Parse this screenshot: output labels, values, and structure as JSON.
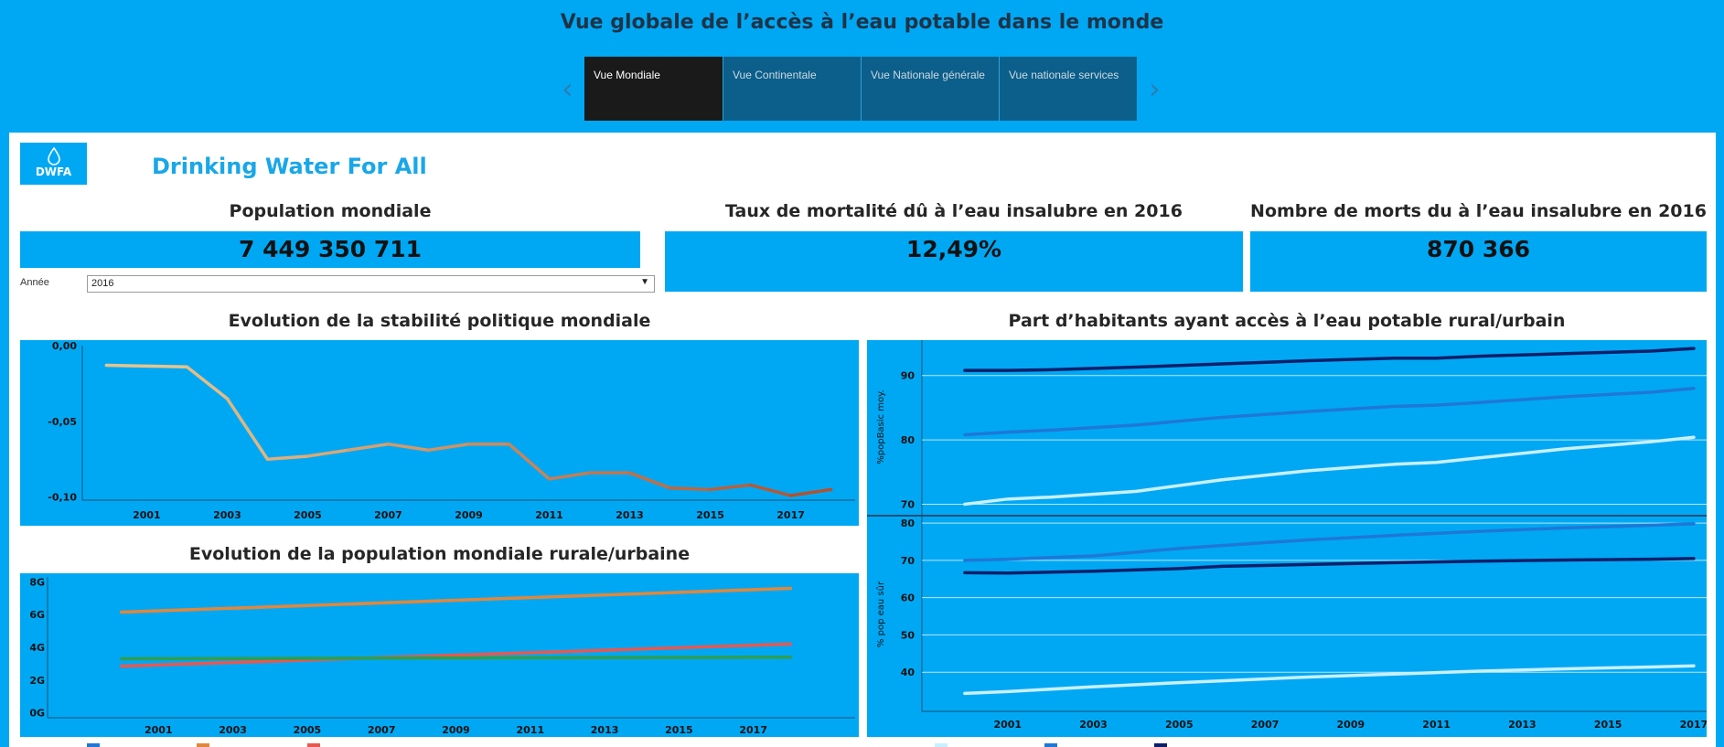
{
  "header": {
    "title": "Vue globale de l’accès à l’eau potable dans le monde",
    "tabs": [
      {
        "label": "Vue Mondiale"
      },
      {
        "label": "Vue Continentale"
      },
      {
        "label": "Vue Nationale générale"
      },
      {
        "label": "Vue nationale services"
      }
    ]
  },
  "brand": {
    "logo_text": "DWFA",
    "name": "Drinking Water For All"
  },
  "kpis": {
    "population": {
      "title": "Population mondiale",
      "value": "7 449 350 711"
    },
    "mortality_rate": {
      "title": "Taux de mortalité dû à l’eau insalubre en 2016",
      "value": "12,49%"
    },
    "deaths": {
      "title": "Nombre de morts du à l’eau insalubre en 2016",
      "value": "870 366"
    }
  },
  "filter": {
    "label": "Année",
    "value": "2016"
  },
  "colors": {
    "accent": "#00a8f4",
    "tab_active": "#1a1a1a",
    "tab_inactive": "#0b5f8a",
    "brand_text": "#19a7e8"
  },
  "chart_data": [
    {
      "id": "stability",
      "type": "line",
      "title": "Evolution de la stabilité politique mondiale",
      "x": [
        2000,
        2002,
        2003,
        2004,
        2005,
        2006,
        2007,
        2008,
        2009,
        2010,
        2011,
        2012,
        2013,
        2014,
        2015,
        2016,
        2017,
        2018
      ],
      "series": [
        {
          "values": [
            -0.013,
            -0.014,
            -0.035,
            -0.075,
            -0.073,
            -0.069,
            -0.065,
            -0.069,
            -0.065,
            -0.065,
            -0.088,
            -0.084,
            -0.084,
            -0.094,
            -0.095,
            -0.092,
            -0.099,
            -0.095
          ]
        }
      ],
      "ylim": [
        -0.102,
        0.0
      ],
      "xlim": [
        1999.4,
        2018.6
      ],
      "yticks": [
        {
          "v": 0.0,
          "label": "0,00"
        },
        {
          "v": -0.05,
          "label": "-0,05"
        },
        {
          "v": -0.1,
          "label": "-0,10"
        }
      ],
      "xticks": [
        "2001",
        "2003",
        "2005",
        "2007",
        "2009",
        "2011",
        "2013",
        "2015",
        "2017"
      ],
      "grid": false
    },
    {
      "id": "population",
      "type": "line",
      "title": "Evolution de la population mondiale rurale/urbaine",
      "x": [
        2000,
        2018
      ],
      "series": [
        {
          "values": [
            6.15,
            7.6
          ],
          "color": "#e0873c"
        },
        {
          "values": [
            2.85,
            4.2
          ],
          "color": "#e8584f"
        },
        {
          "values": [
            3.3,
            3.4
          ],
          "color": "#2e9e50"
        }
      ],
      "ylim": [
        -0.3,
        8.3
      ],
      "xlim": [
        1999,
        2019
      ],
      "yticks": [
        {
          "v": 8,
          "label": "8G"
        },
        {
          "v": 6,
          "label": "6G"
        },
        {
          "v": 4,
          "label": "4G"
        },
        {
          "v": 2,
          "label": "2G"
        },
        {
          "v": 0,
          "label": "0G"
        }
      ],
      "xticks": [
        "2001",
        "2003",
        "2005",
        "2007",
        "2009",
        "2011",
        "2013",
        "2015",
        "2017"
      ],
      "grid": false
    },
    {
      "id": "access",
      "type": "line",
      "title": "Part d’habitants ayant accès à l’eau potable rural/urbain",
      "xticks": [
        "2001",
        "2003",
        "2005",
        "2007",
        "2009",
        "2011",
        "2013",
        "2015",
        "2017"
      ],
      "xlim": [
        1999,
        2017.3
      ],
      "grid": true,
      "panels": [
        {
          "ylabel": "%popBasic moy.",
          "ylim": [
            68.5,
            95.5
          ],
          "yticks": [
            "90",
            "80",
            "70"
          ],
          "x": [
            2000,
            2001,
            2002,
            2004,
            2006,
            2008,
            2010,
            2011,
            2012,
            2014,
            2016,
            2017
          ],
          "series": [
            {
              "color": "#0b1f6a",
              "values": [
                90.8,
                90.8,
                90.9,
                91.3,
                91.8,
                92.3,
                92.7,
                92.7,
                93.0,
                93.4,
                93.8,
                94.2
              ]
            },
            {
              "color": "#1e78d6",
              "values": [
                80.8,
                81.2,
                81.5,
                82.3,
                83.5,
                84.4,
                85.2,
                85.4,
                85.8,
                86.7,
                87.4,
                88.0
              ]
            },
            {
              "color": "#c8f0ff",
              "values": [
                70.0,
                70.8,
                71.1,
                72.0,
                73.8,
                75.2,
                76.2,
                76.5,
                77.2,
                78.6,
                79.7,
                80.4
              ]
            }
          ]
        },
        {
          "ylabel": "% pop eau sûr",
          "ylim": [
            29.5,
            81.5
          ],
          "yticks": [
            "80",
            "70",
            "60",
            "50",
            "40"
          ],
          "x": [
            2000,
            2001,
            2003,
            2005,
            2006,
            2008,
            2010,
            2012,
            2014,
            2016,
            2017
          ],
          "series": [
            {
              "color": "#1e78d6",
              "values": [
                70.0,
                70.3,
                71.2,
                73.2,
                74.0,
                75.5,
                76.7,
                77.8,
                78.7,
                79.4,
                79.8
              ]
            },
            {
              "color": "#0b1f6a",
              "values": [
                66.7,
                66.6,
                67.1,
                67.8,
                68.4,
                68.9,
                69.4,
                69.8,
                70.1,
                70.3,
                70.5
              ]
            },
            {
              "color": "#c8f0ff",
              "values": [
                34.3,
                34.8,
                36.1,
                37.2,
                37.7,
                38.7,
                39.5,
                40.3,
                40.9,
                41.4,
                41.7
              ]
            }
          ]
        }
      ]
    }
  ]
}
